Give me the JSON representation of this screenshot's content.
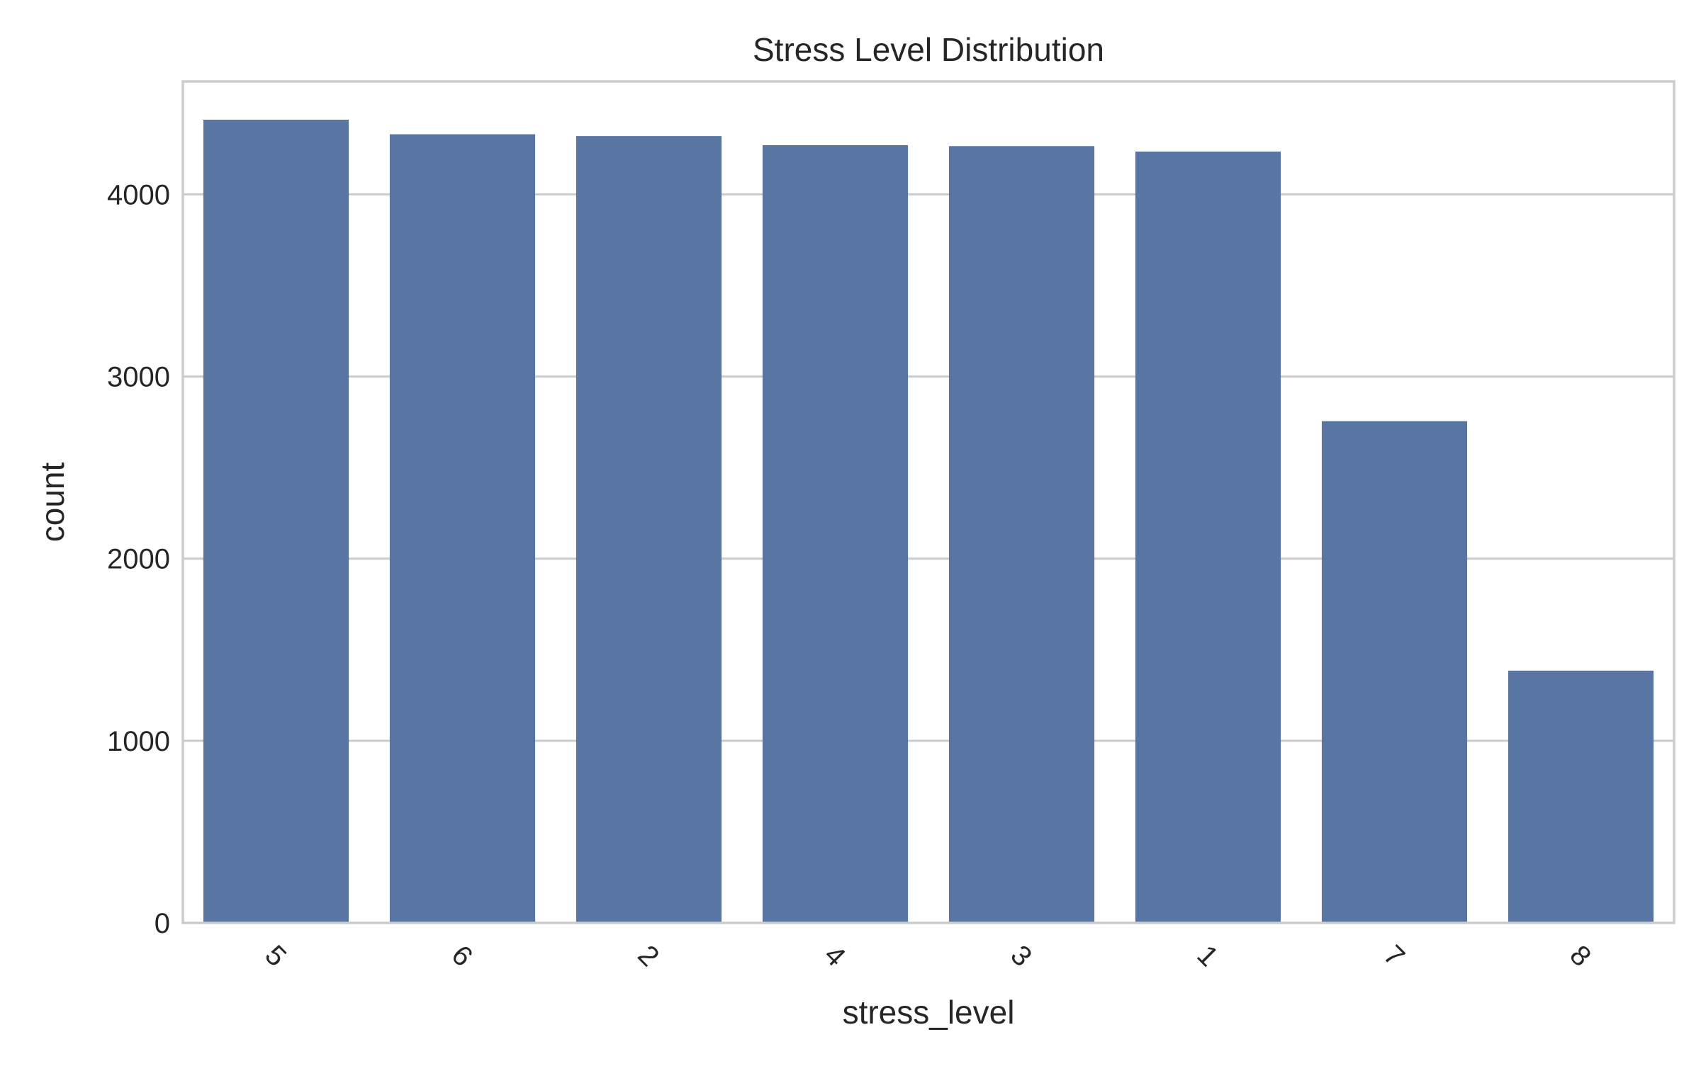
{
  "chart_data": {
    "type": "bar",
    "title": "Stress Level Distribution",
    "xlabel": "stress_level",
    "ylabel": "count",
    "categories": [
      "5",
      "6",
      "2",
      "4",
      "3",
      "1",
      "7",
      "8"
    ],
    "values": [
      4410,
      4330,
      4320,
      4270,
      4265,
      4235,
      2755,
      1385
    ],
    "ylim": [
      0,
      4620
    ],
    "yticks": [
      0,
      1000,
      2000,
      3000,
      4000
    ],
    "grid": "horizontal",
    "tick_rotation": 45,
    "colors": {
      "bar": "#5975a4",
      "grid": "#cccccc",
      "frame": "#cccccc",
      "text": "#262626"
    }
  }
}
